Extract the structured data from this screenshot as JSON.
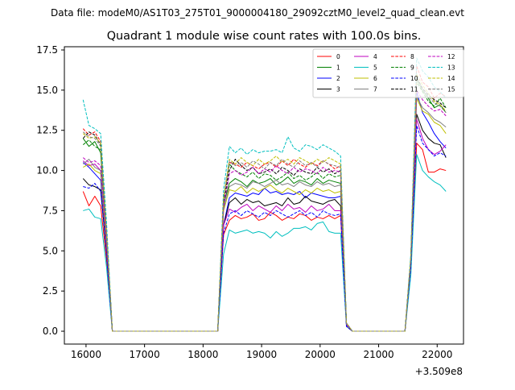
{
  "figure": {
    "suptitle": "Data file: modeM0/AS1T03_275T01_9000004180_29092cztM0_level2_quad_clean.evt"
  },
  "chart_data": {
    "type": "line",
    "title": "Quadrant 1 module wise count rates with 100.0s bins.",
    "xlabel": "",
    "ylabel": "",
    "x_offset_label": "+3.509e8",
    "xlim": [
      15630,
      22450
    ],
    "ylim": [
      -0.8,
      17.7
    ],
    "x_ticks": [
      16000,
      17000,
      18000,
      19000,
      20000,
      21000,
      22000
    ],
    "x_tick_labels": [
      "16000",
      "17000",
      "18000",
      "19000",
      "20000",
      "21000",
      "22000"
    ],
    "y_ticks": [
      0.0,
      2.5,
      5.0,
      7.5,
      10.0,
      12.5,
      15.0,
      17.5
    ],
    "y_tick_labels": [
      "0.0",
      "2.5",
      "5.0",
      "7.5",
      "10.0",
      "12.5",
      "15.0",
      "17.5"
    ],
    "grid": false,
    "legend": {
      "placement": "top-right",
      "columns": 4
    },
    "segments_x": {
      "seg1": [
        15950,
        16050,
        16150,
        16250,
        16350,
        16450
      ],
      "gap1": [
        16450,
        18250
      ],
      "seg2": [
        18250,
        18350,
        18450,
        18550,
        18650,
        18750,
        18850,
        18950,
        19050,
        19150,
        19250,
        19350,
        19450,
        19550,
        19650,
        19750,
        19850,
        19950,
        20050,
        20150,
        20250,
        20350,
        20450,
        20550
      ],
      "gap2": [
        20550,
        21450
      ],
      "seg3": [
        21450,
        21550,
        21650,
        21750,
        21850,
        21950,
        22050,
        22150
      ]
    },
    "series": [
      {
        "name": "0",
        "color": "#ff0000",
        "style": "solid",
        "seg1": [
          8.7,
          7.8,
          8.4,
          7.8,
          4.5,
          0
        ],
        "seg2": [
          0,
          6.0,
          6.9,
          7.2,
          7.0,
          7.1,
          7.3,
          6.9,
          7.0,
          7.4,
          7.2,
          6.9,
          7.1,
          7.0,
          7.3,
          7.2,
          6.9,
          7.1,
          7.0,
          7.2,
          7.0,
          7.2,
          0.3,
          0
        ],
        "seg3": [
          0,
          4.0,
          11.7,
          11.3,
          9.9,
          9.9,
          10.1,
          10.0
        ]
      },
      {
        "name": "1",
        "color": "#008000",
        "style": "solid",
        "seg1": [
          12.0,
          11.5,
          11.8,
          11.1,
          6.0,
          0
        ],
        "seg2": [
          0,
          7.9,
          9.2,
          9.5,
          9.3,
          9.0,
          9.4,
          9.2,
          9.3,
          9.5,
          9.1,
          9.3,
          9.6,
          9.2,
          9.4,
          9.3,
          9.1,
          9.5,
          9.2,
          9.4,
          9.3,
          9.2,
          0.5,
          0
        ],
        "seg3": [
          0,
          4.5,
          15.7,
          15.0,
          14.5,
          13.9,
          14.1,
          13.6
        ]
      },
      {
        "name": "2",
        "color": "#0000ff",
        "style": "solid",
        "seg1": [
          10.5,
          10.2,
          9.8,
          9.4,
          5.5,
          0
        ],
        "seg2": [
          0,
          6.6,
          8.3,
          8.6,
          8.5,
          8.4,
          8.6,
          8.5,
          8.9,
          8.6,
          8.7,
          8.5,
          8.6,
          8.5,
          8.7,
          8.3,
          8.6,
          8.5,
          8.4,
          8.3,
          8.3,
          8.4,
          0.4,
          0
        ],
        "seg3": [
          0,
          4.2,
          14.9,
          13.6,
          13.0,
          12.3,
          11.8,
          11.4
        ]
      },
      {
        "name": "3",
        "color": "#000000",
        "style": "solid",
        "seg1": [
          9.5,
          9.1,
          9.0,
          8.8,
          5.0,
          0
        ],
        "seg2": [
          0,
          6.6,
          8.0,
          8.3,
          7.9,
          8.2,
          8.0,
          8.1,
          7.8,
          7.9,
          8.0,
          7.8,
          8.3,
          7.9,
          8.0,
          8.4,
          8.1,
          8.0,
          7.9,
          8.1,
          8.2,
          7.8,
          0.4,
          0
        ],
        "seg3": [
          0,
          4.0,
          13.5,
          12.5,
          12.0,
          11.7,
          11.6,
          10.8
        ]
      },
      {
        "name": "4",
        "color": "#bf00bf",
        "style": "solid",
        "seg1": [
          10.6,
          10.3,
          10.4,
          10.0,
          5.4,
          0
        ],
        "seg2": [
          0,
          6.6,
          7.6,
          7.4,
          7.7,
          7.9,
          7.5,
          7.8,
          7.6,
          7.4,
          7.8,
          7.5,
          7.9,
          7.6,
          7.7,
          7.4,
          7.8,
          7.5,
          7.6,
          7.9,
          7.5,
          7.5,
          0.4,
          0
        ],
        "seg3": [
          0,
          4.1,
          13.2,
          12.0,
          11.3,
          11.0,
          11.2,
          11.6
        ]
      },
      {
        "name": "5",
        "color": "#00bfbf",
        "style": "solid",
        "seg1": [
          7.5,
          7.6,
          7.1,
          7.0,
          4.0,
          0
        ],
        "seg2": [
          0,
          4.8,
          6.3,
          6.1,
          6.2,
          6.3,
          6.1,
          6.2,
          6.1,
          5.8,
          6.2,
          5.9,
          6.1,
          6.4,
          6.4,
          6.5,
          6.3,
          6.7,
          6.8,
          6.2,
          6.1,
          6.1,
          0.3,
          0
        ],
        "seg3": [
          0,
          3.5,
          11.0,
          10.0,
          9.6,
          9.3,
          9.1,
          8.7
        ]
      },
      {
        "name": "6",
        "color": "#bfbf00",
        "style": "solid",
        "seg1": [
          10.2,
          10.4,
          10.0,
          9.8,
          5.3,
          0
        ],
        "seg2": [
          0,
          7.5,
          8.8,
          8.7,
          9.0,
          8.6,
          8.9,
          8.7,
          8.9,
          9.1,
          8.8,
          8.6,
          8.9,
          8.7,
          8.5,
          8.8,
          8.6,
          8.9,
          8.7,
          8.8,
          8.6,
          8.7,
          0.4,
          0
        ],
        "seg3": [
          0,
          4.3,
          14.5,
          13.7,
          13.5,
          13.0,
          12.8,
          12.3
        ]
      },
      {
        "name": "7",
        "color": "#808080",
        "style": "solid",
        "seg1": [
          10.4,
          10.7,
          10.2,
          10.0,
          5.4,
          0
        ],
        "seg2": [
          0,
          7.6,
          9.0,
          9.2,
          9.1,
          8.9,
          9.3,
          9.2,
          9.0,
          9.2,
          9.4,
          9.1,
          9.2,
          9.0,
          9.3,
          9.1,
          9.0,
          9.3,
          9.1,
          9.2,
          9.0,
          9.1,
          0.4,
          0
        ],
        "seg3": [
          0,
          4.4,
          14.6,
          13.9,
          13.6,
          13.2,
          13.0,
          12.7
        ]
      },
      {
        "name": "8",
        "color": "#ff0000",
        "style": "dashed",
        "seg1": [
          12.6,
          12.2,
          12.4,
          11.8,
          6.3,
          0
        ],
        "seg2": [
          0,
          8.2,
          10.5,
          10.4,
          10.2,
          10.5,
          10.3,
          10.1,
          10.4,
          10.5,
          10.2,
          10.6,
          10.3,
          10.7,
          10.4,
          10.2,
          10.5,
          10.3,
          10.6,
          10.4,
          10.1,
          10.3,
          0.5,
          0
        ],
        "seg3": [
          0,
          4.6,
          16.5,
          15.5,
          15.2,
          14.5,
          14.8,
          14.6
        ]
      },
      {
        "name": "9",
        "color": "#008000",
        "style": "dashed",
        "seg1": [
          11.6,
          11.9,
          11.5,
          11.3,
          6.0,
          0
        ],
        "seg2": [
          0,
          8.1,
          10.4,
          10.0,
          9.8,
          9.6,
          9.9,
          9.5,
          9.8,
          9.7,
          9.4,
          9.6,
          9.9,
          9.5,
          9.7,
          9.4,
          9.6,
          9.9,
          9.5,
          9.8,
          9.6,
          9.7,
          0.5,
          0
        ],
        "seg3": [
          0,
          4.5,
          15.5,
          14.9,
          14.3,
          14.0,
          14.5,
          13.9
        ]
      },
      {
        "name": "10",
        "color": "#0000ff",
        "style": "dashed",
        "seg1": [
          9.0,
          8.9,
          9.2,
          8.7,
          4.8,
          0
        ],
        "seg2": [
          0,
          6.1,
          7.3,
          7.5,
          7.2,
          7.5,
          7.3,
          7.1,
          7.4,
          7.2,
          7.5,
          7.3,
          7.1,
          7.3,
          7.5,
          7.2,
          7.4,
          7.1,
          7.5,
          7.3,
          7.2,
          7.3,
          0.3,
          0
        ],
        "seg3": [
          0,
          4.0,
          12.8,
          11.7,
          11.3,
          10.9,
          11.1,
          10.9
        ]
      },
      {
        "name": "11",
        "color": "#000000",
        "style": "dashed",
        "seg1": [
          12.0,
          12.4,
          12.2,
          11.6,
          6.2,
          0
        ],
        "seg2": [
          0,
          8.0,
          10.0,
          10.7,
          10.3,
          10.0,
          10.2,
          9.8,
          9.9,
          10.1,
          9.8,
          10.2,
          10.0,
          9.7,
          10.1,
          9.9,
          9.8,
          10.2,
          9.9,
          10.1,
          9.8,
          10.0,
          0.5,
          0
        ],
        "seg3": [
          0,
          4.6,
          15.8,
          15.1,
          14.7,
          14.4,
          14.2,
          13.9
        ]
      },
      {
        "name": "12",
        "color": "#bf00bf",
        "style": "dashed",
        "seg1": [
          10.8,
          10.5,
          10.6,
          10.3,
          5.6,
          0
        ],
        "seg2": [
          0,
          7.7,
          9.8,
          10.0,
          9.7,
          9.9,
          10.2,
          9.8,
          10.1,
          9.9,
          10.3,
          10.0,
          9.8,
          10.2,
          9.9,
          10.1,
          10.0,
          9.8,
          10.2,
          9.9,
          10.0,
          9.9,
          0.4,
          0
        ],
        "seg3": [
          0,
          4.5,
          15.0,
          14.4,
          14.0,
          13.7,
          13.8,
          13.4
        ]
      },
      {
        "name": "13",
        "color": "#00bfbf",
        "style": "dashed",
        "seg1": [
          14.4,
          12.8,
          12.6,
          12.3,
          6.8,
          0
        ],
        "seg2": [
          0,
          8.8,
          11.5,
          11.1,
          11.4,
          11.0,
          11.3,
          11.1,
          11.2,
          11.2,
          11.3,
          11.1,
          12.1,
          11.4,
          11.2,
          11.6,
          11.5,
          11.3,
          11.6,
          11.4,
          11.2,
          10.9,
          0.5,
          0
        ],
        "seg3": [
          0,
          4.8,
          17.0,
          16.2,
          15.8,
          15.2,
          14.9,
          14.5
        ]
      },
      {
        "name": "14",
        "color": "#bfbf00",
        "style": "dashed",
        "seg1": [
          12.3,
          12.0,
          12.1,
          11.7,
          6.1,
          0
        ],
        "seg2": [
          0,
          8.3,
          10.7,
          10.4,
          10.8,
          10.5,
          10.3,
          10.7,
          10.4,
          10.6,
          10.9,
          10.5,
          10.7,
          10.4,
          10.8,
          10.6,
          10.4,
          10.7,
          10.5,
          10.8,
          10.6,
          10.4,
          0.5,
          0
        ],
        "seg3": [
          0,
          4.6,
          16.0,
          15.3,
          14.8,
          14.3,
          14.1,
          13.7
        ]
      },
      {
        "name": "15",
        "color": "#808080",
        "style": "dashed",
        "seg1": [
          12.4,
          12.1,
          12.0,
          11.5,
          6.1,
          0
        ],
        "seg2": [
          0,
          8.1,
          10.6,
          10.3,
          10.5,
          10.2,
          10.6,
          10.4,
          10.1,
          10.5,
          10.3,
          10.7,
          10.4,
          10.2,
          10.6,
          10.3,
          10.5,
          10.2,
          10.6,
          10.4,
          10.3,
          10.2,
          0.5,
          0
        ],
        "seg3": [
          0,
          4.5,
          15.8,
          15.0,
          14.6,
          14.2,
          14.0,
          13.6
        ]
      }
    ]
  }
}
